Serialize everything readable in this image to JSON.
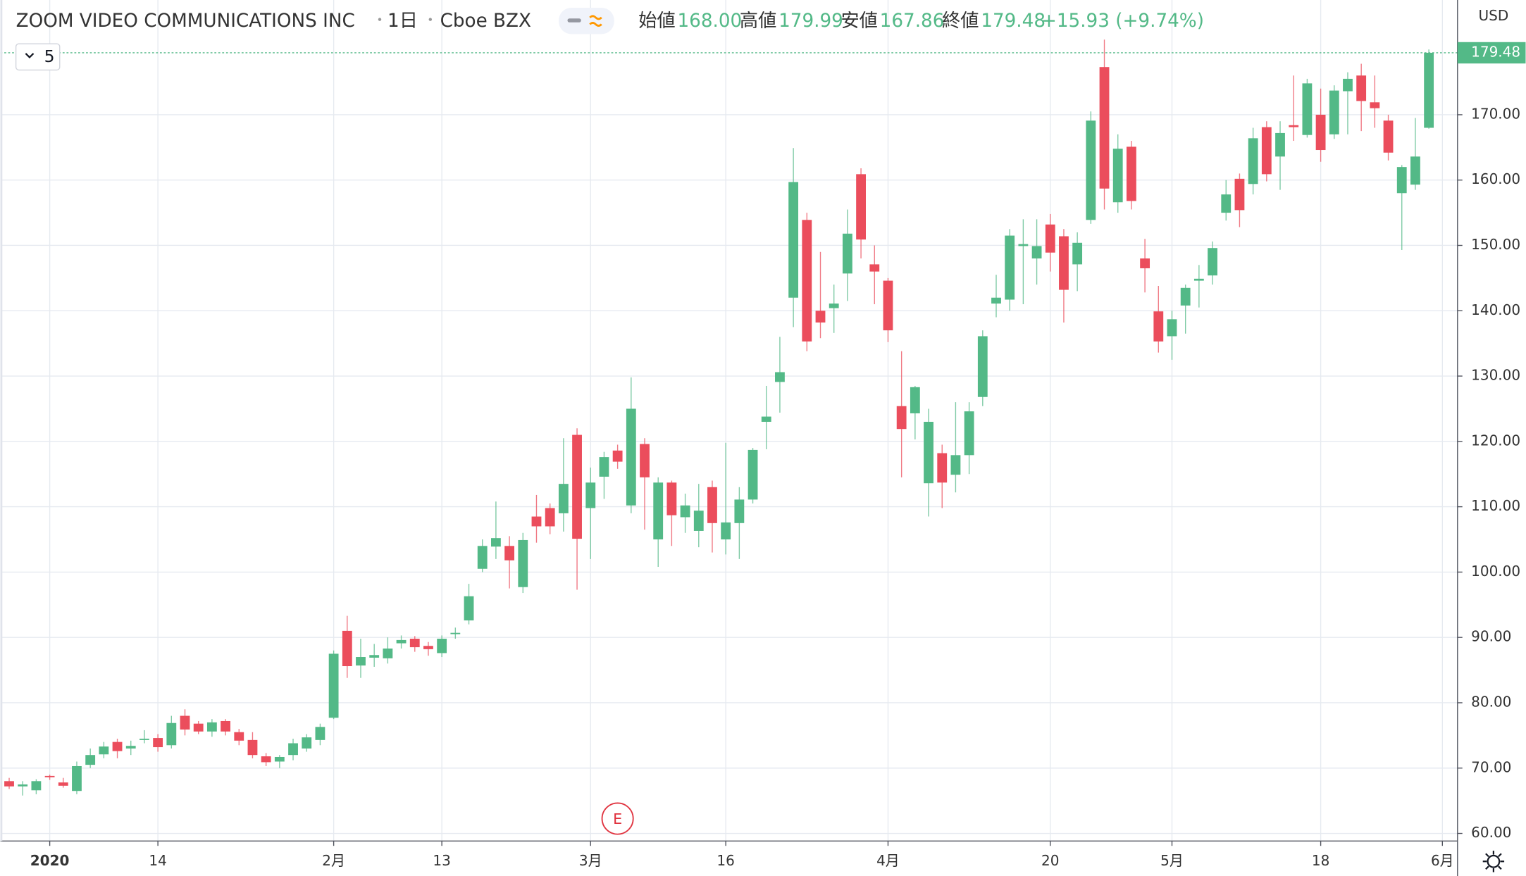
{
  "chart_data": {
    "type": "candlestick",
    "header": {
      "title": "ZOOM VIDEO COMMUNICATIONS INC",
      "interval": "1日",
      "exchange": "Cboe BZX",
      "ohlc": [
        {
          "label": "始値",
          "value": "168.00"
        },
        {
          "label": "高値",
          "value": "179.99"
        },
        {
          "label": "安値",
          "value": "167.86"
        },
        {
          "label": "終値",
          "value": "179.48"
        }
      ],
      "change": "+15.93 (+9.74%)"
    },
    "interval_button": "5",
    "currency": "USD",
    "up_color": "#53b987",
    "down_color": "#eb4d5c",
    "open": [
      68.0,
      67.2,
      66.6,
      68.8,
      67.8,
      66.5,
      70.5,
      72.1,
      74.0,
      73.0,
      74.3,
      74.6,
      73.5,
      78.0,
      76.8,
      75.6,
      77.2,
      75.5,
      74.3,
      71.8,
      71.0,
      72.0,
      73.0,
      74.3,
      77.7,
      91.0,
      85.7,
      86.9,
      86.8,
      89.1,
      89.8,
      88.7,
      87.6,
      90.5,
      92.6,
      100.5,
      103.9,
      104.0,
      97.7,
      108.5,
      109.8,
      109.0,
      121.0,
      109.8,
      114.6,
      118.6,
      110.2,
      119.6,
      105.0,
      113.7,
      108.4,
      106.3,
      113.0,
      105.0,
      107.5,
      111.1,
      123.0,
      129.1,
      142.0,
      153.9,
      140.0,
      140.4,
      145.7,
      160.9,
      147.1,
      144.6,
      125.4,
      124.3,
      113.6,
      118.2,
      114.9,
      117.9,
      126.8,
      141.1,
      141.7,
      149.9,
      148.0,
      153.2,
      151.4,
      147.1,
      153.9,
      177.3,
      156.6,
      165.1,
      148.0,
      139.9,
      136.1,
      140.8,
      144.6,
      145.4,
      155.0,
      160.2,
      159.4,
      168.1,
      163.6,
      168.4,
      166.9,
      170.0,
      167.0,
      173.6,
      176.0,
      171.9,
      169.1,
      158.0,
      159.3,
      168.0
    ],
    "high": [
      68.5,
      68.0,
      68.3,
      69.0,
      68.5,
      71.0,
      73.0,
      74.0,
      74.5,
      74.2,
      75.8,
      75.2,
      78.0,
      79.0,
      77.2,
      77.5,
      77.5,
      76.0,
      75.5,
      72.3,
      72.0,
      74.5,
      75.2,
      76.8,
      88.0,
      93.3,
      89.8,
      89.0,
      90.0,
      90.3,
      90.2,
      89.3,
      90.3,
      91.5,
      98.2,
      105.0,
      110.8,
      105.5,
      106.0,
      111.8,
      110.5,
      120.5,
      122.0,
      116.0,
      118.4,
      119.5,
      129.8,
      120.5,
      114.5,
      114.0,
      112.0,
      113.5,
      114.0,
      119.8,
      113.0,
      119.0,
      128.5,
      136.0,
      164.9,
      155.0,
      149.0,
      144.0,
      155.5,
      161.8,
      150.0,
      145.0,
      133.8,
      128.5,
      125.0,
      119.5,
      126.0,
      126.0,
      137.0,
      145.5,
      152.5,
      154.0,
      154.0,
      154.8,
      152.5,
      152.0,
      170.5,
      181.5,
      167.0,
      166.0,
      151.0,
      143.8,
      140.0,
      144.0,
      147.0,
      150.6,
      160.0,
      161.0,
      168.0,
      169.0,
      169.0,
      176.0,
      175.5,
      174.0,
      174.5,
      176.5,
      177.8,
      176.0,
      170.0,
      162.3,
      169.5,
      179.99
    ],
    "low": [
      66.8,
      65.8,
      66.0,
      68.2,
      67.0,
      66.0,
      70.0,
      71.5,
      71.5,
      72.0,
      73.8,
      72.5,
      73.0,
      75.0,
      75.2,
      74.8,
      75.0,
      73.5,
      71.5,
      70.3,
      70.0,
      71.2,
      72.5,
      73.5,
      77.5,
      83.8,
      83.8,
      85.5,
      86.0,
      88.3,
      87.8,
      87.2,
      87.0,
      89.8,
      92.0,
      100.0,
      102.0,
      97.5,
      96.8,
      104.5,
      105.8,
      106.2,
      97.3,
      102.0,
      111.2,
      115.8,
      109.0,
      106.5,
      100.8,
      104.0,
      106.0,
      103.8,
      103.0,
      102.7,
      102.0,
      110.5,
      118.8,
      124.4,
      137.5,
      133.8,
      135.8,
      136.6,
      141.5,
      148.0,
      141.0,
      135.2,
      114.5,
      120.3,
      108.5,
      109.8,
      112.2,
      115.0,
      125.4,
      139.0,
      140.0,
      141.0,
      144.0,
      146.0,
      138.2,
      143.0,
      153.3,
      155.5,
      155.0,
      155.5,
      142.8,
      133.6,
      132.5,
      136.5,
      140.5,
      144.0,
      153.8,
      152.8,
      157.8,
      159.8,
      158.5,
      166.0,
      166.5,
      162.8,
      166.3,
      167.0,
      167.5,
      168.0,
      163.0,
      149.3,
      158.5,
      167.86
    ],
    "close": [
      67.2,
      67.5,
      68.0,
      68.6,
      67.3,
      70.3,
      72.0,
      73.3,
      72.6,
      73.4,
      74.5,
      73.2,
      76.9,
      75.9,
      75.6,
      77.0,
      75.6,
      74.2,
      72.0,
      70.9,
      71.7,
      73.8,
      74.7,
      76.3,
      87.5,
      85.6,
      87.0,
      87.3,
      88.3,
      89.6,
      88.5,
      88.2,
      89.8,
      90.7,
      96.3,
      104.0,
      105.2,
      101.8,
      104.9,
      107.0,
      107.0,
      113.5,
      105.1,
      113.7,
      117.6,
      116.9,
      125.0,
      114.5,
      113.7,
      108.7,
      110.2,
      109.4,
      107.5,
      107.6,
      111.1,
      118.7,
      123.8,
      130.6,
      159.7,
      135.3,
      138.2,
      141.1,
      151.8,
      150.9,
      146.0,
      137.0,
      121.9,
      128.3,
      123.0,
      113.7,
      117.9,
      124.6,
      136.1,
      142.0,
      151.5,
      150.2,
      149.9,
      148.9,
      143.2,
      150.4,
      169.1,
      158.7,
      164.8,
      156.8,
      146.5,
      135.3,
      138.7,
      143.5,
      144.9,
      149.6,
      157.8,
      155.4,
      166.4,
      160.9,
      167.2,
      168.1,
      174.8,
      164.6,
      173.7,
      175.5,
      172.1,
      171.0,
      164.2,
      162.0,
      163.6,
      179.48
    ],
    "xlim": [
      -0.65,
      107.12
    ],
    "xticks": [
      {
        "value": 3,
        "label": "2020"
      },
      {
        "value": 11,
        "label": "14"
      },
      {
        "value": 24,
        "label": "2月"
      },
      {
        "value": 32,
        "label": "13"
      },
      {
        "value": 43,
        "label": "3月"
      },
      {
        "value": 53,
        "label": "16"
      },
      {
        "value": 65,
        "label": "4月"
      },
      {
        "value": 77,
        "label": "20"
      },
      {
        "value": 86,
        "label": "5月"
      },
      {
        "value": 97,
        "label": "18"
      },
      {
        "value": 106,
        "label": "6月"
      }
    ],
    "ylim": [
      58.84,
      187.56
    ],
    "yticks": [
      {
        "value": 60,
        "label": "60.00"
      },
      {
        "value": 70,
        "label": "70.00"
      },
      {
        "value": 80,
        "label": "80.00"
      },
      {
        "value": 90,
        "label": "90.00"
      },
      {
        "value": 100,
        "label": "100.00"
      },
      {
        "value": 110,
        "label": "110.00"
      },
      {
        "value": 120,
        "label": "120.00"
      },
      {
        "value": 130,
        "label": "130.00"
      },
      {
        "value": 140,
        "label": "140.00"
      },
      {
        "value": 150,
        "label": "150.00"
      },
      {
        "value": 160,
        "label": "160.00"
      },
      {
        "value": 170,
        "label": "170.00"
      }
    ],
    "grid": true,
    "events": [
      {
        "index": 45,
        "label": "E"
      }
    ]
  }
}
